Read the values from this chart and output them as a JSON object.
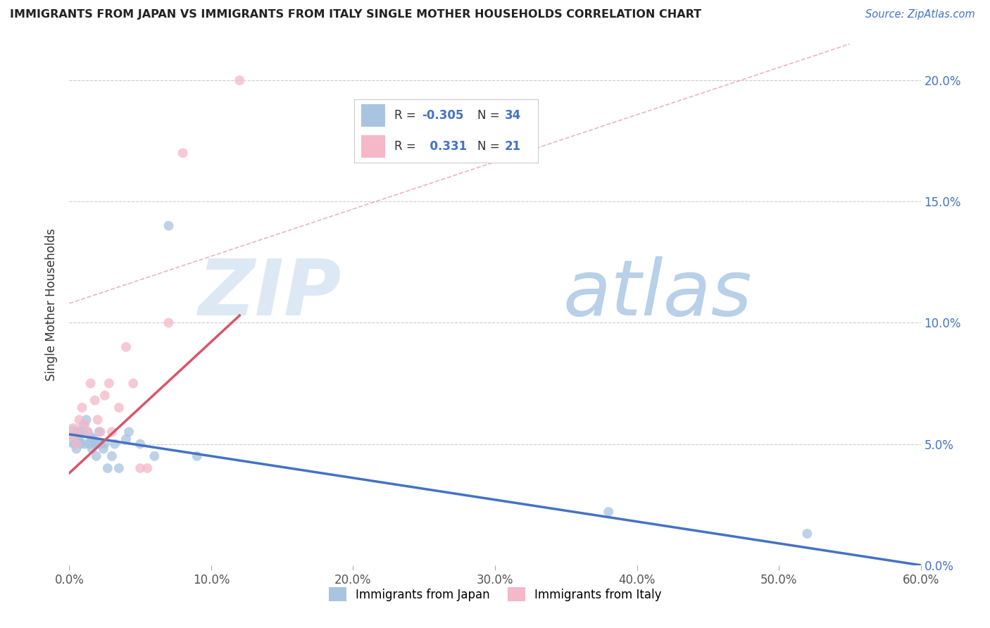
{
  "title": "IMMIGRANTS FROM JAPAN VS IMMIGRANTS FROM ITALY SINGLE MOTHER HOUSEHOLDS CORRELATION CHART",
  "source": "Source: ZipAtlas.com",
  "ylabel": "Single Mother Households",
  "xlabel": "",
  "xlim": [
    0,
    0.6
  ],
  "ylim": [
    0.0,
    0.215
  ],
  "yticks": [
    0.0,
    0.05,
    0.1,
    0.15,
    0.2
  ],
  "ytick_labels": [
    "0.0%",
    "5.0%",
    "10.0%",
    "15.0%",
    "20.0%"
  ],
  "xticks": [
    0.0,
    0.1,
    0.2,
    0.3,
    0.4,
    0.5,
    0.6
  ],
  "xtick_labels": [
    "0.0%",
    "10.0%",
    "20.0%",
    "30.0%",
    "40.0%",
    "50.0%",
    "60.0%"
  ],
  "japan_color": "#a8c4e0",
  "italy_color": "#f4b8c8",
  "japan_line_color": "#4472c4",
  "italy_line_color": "#d9546a",
  "diag_line_color": "#e8a0b0",
  "japan_R": -0.305,
  "japan_N": 34,
  "italy_R": 0.331,
  "italy_N": 21,
  "watermark_zip_color": "#dce9f5",
  "watermark_atlas_color": "#b8d0e8",
  "background_color": "#ffffff",
  "grid_color": "#cccccc",
  "japan_scatter_x": [
    0.002,
    0.004,
    0.005,
    0.006,
    0.007,
    0.008,
    0.009,
    0.01,
    0.011,
    0.012,
    0.013,
    0.014,
    0.015,
    0.016,
    0.017,
    0.018,
    0.019,
    0.02,
    0.021,
    0.022,
    0.024,
    0.025,
    0.027,
    0.03,
    0.032,
    0.035,
    0.04,
    0.042,
    0.05,
    0.06,
    0.09,
    0.38,
    0.52,
    0.07
  ],
  "japan_scatter_y": [
    0.053,
    0.05,
    0.048,
    0.055,
    0.052,
    0.05,
    0.055,
    0.058,
    0.05,
    0.06,
    0.055,
    0.05,
    0.053,
    0.048,
    0.052,
    0.05,
    0.045,
    0.05,
    0.055,
    0.05,
    0.048,
    0.05,
    0.04,
    0.045,
    0.05,
    0.04,
    0.052,
    0.055,
    0.05,
    0.045,
    0.045,
    0.022,
    0.013,
    0.14
  ],
  "japan_bubble_sizes": [
    500,
    100,
    100,
    100,
    100,
    100,
    100,
    100,
    100,
    100,
    100,
    100,
    100,
    100,
    100,
    100,
    100,
    100,
    100,
    100,
    100,
    100,
    100,
    100,
    100,
    100,
    100,
    100,
    100,
    100,
    100,
    100,
    100,
    100
  ],
  "italy_scatter_x": [
    0.003,
    0.005,
    0.007,
    0.009,
    0.011,
    0.013,
    0.015,
    0.018,
    0.02,
    0.022,
    0.025,
    0.028,
    0.03,
    0.035,
    0.04,
    0.045,
    0.05,
    0.055,
    0.07,
    0.08,
    0.12
  ],
  "italy_scatter_y": [
    0.055,
    0.05,
    0.06,
    0.065,
    0.058,
    0.055,
    0.075,
    0.068,
    0.06,
    0.055,
    0.07,
    0.075,
    0.055,
    0.065,
    0.09,
    0.075,
    0.04,
    0.04,
    0.1,
    0.17,
    0.2
  ],
  "italy_bubble_sizes": [
    300,
    100,
    100,
    100,
    100,
    100,
    100,
    100,
    100,
    100,
    100,
    100,
    100,
    100,
    100,
    100,
    100,
    100,
    100,
    100,
    100
  ],
  "japan_line_x0": 0.0,
  "japan_line_x1": 0.6,
  "japan_line_y0": 0.054,
  "japan_line_y1": 0.0,
  "italy_line_x0": 0.0,
  "italy_line_x1": 0.12,
  "italy_line_y0": 0.038,
  "italy_line_y1": 0.103,
  "diag_line_x0": 0.0,
  "diag_line_x1": 0.55,
  "diag_line_y0": 0.108,
  "diag_line_y1": 0.215
}
